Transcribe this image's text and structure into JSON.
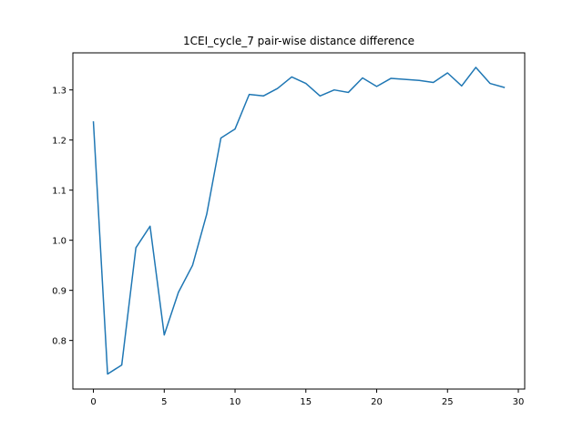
{
  "chart_data": {
    "type": "line",
    "title": "1CEI_cycle_7 pair-wise distance difference",
    "xlabel": "",
    "ylabel": "",
    "xlim": [
      -1.45,
      30.45
    ],
    "ylim": [
      0.703,
      1.374
    ],
    "xticks": [
      0,
      5,
      10,
      15,
      20,
      25,
      30
    ],
    "yticks": [
      0.8,
      0.9,
      1.0,
      1.1,
      1.2,
      1.3
    ],
    "xtick_labels": [
      "0",
      "5",
      "10",
      "15",
      "20",
      "25",
      "30"
    ],
    "ytick_labels": [
      "0.8",
      "0.9",
      "1.0",
      "1.1",
      "1.2",
      "1.3"
    ],
    "grid": false,
    "legend": "none",
    "series": [
      {
        "color": "#1f77b4",
        "x": [
          0,
          1,
          2,
          3,
          4,
          5,
          6,
          7,
          8,
          9,
          10,
          11,
          12,
          13,
          14,
          15,
          16,
          17,
          18,
          19,
          20,
          21,
          22,
          23,
          24,
          25,
          26,
          27,
          28,
          29
        ],
        "y": [
          1.236,
          0.733,
          0.751,
          0.985,
          1.028,
          0.811,
          0.896,
          0.95,
          1.052,
          1.204,
          1.222,
          1.291,
          1.288,
          1.303,
          1.326,
          1.313,
          1.288,
          1.3,
          1.295,
          1.324,
          1.307,
          1.323,
          1.321,
          1.319,
          1.315,
          1.334,
          1.308,
          1.345,
          1.313,
          1.305
        ]
      }
    ]
  }
}
